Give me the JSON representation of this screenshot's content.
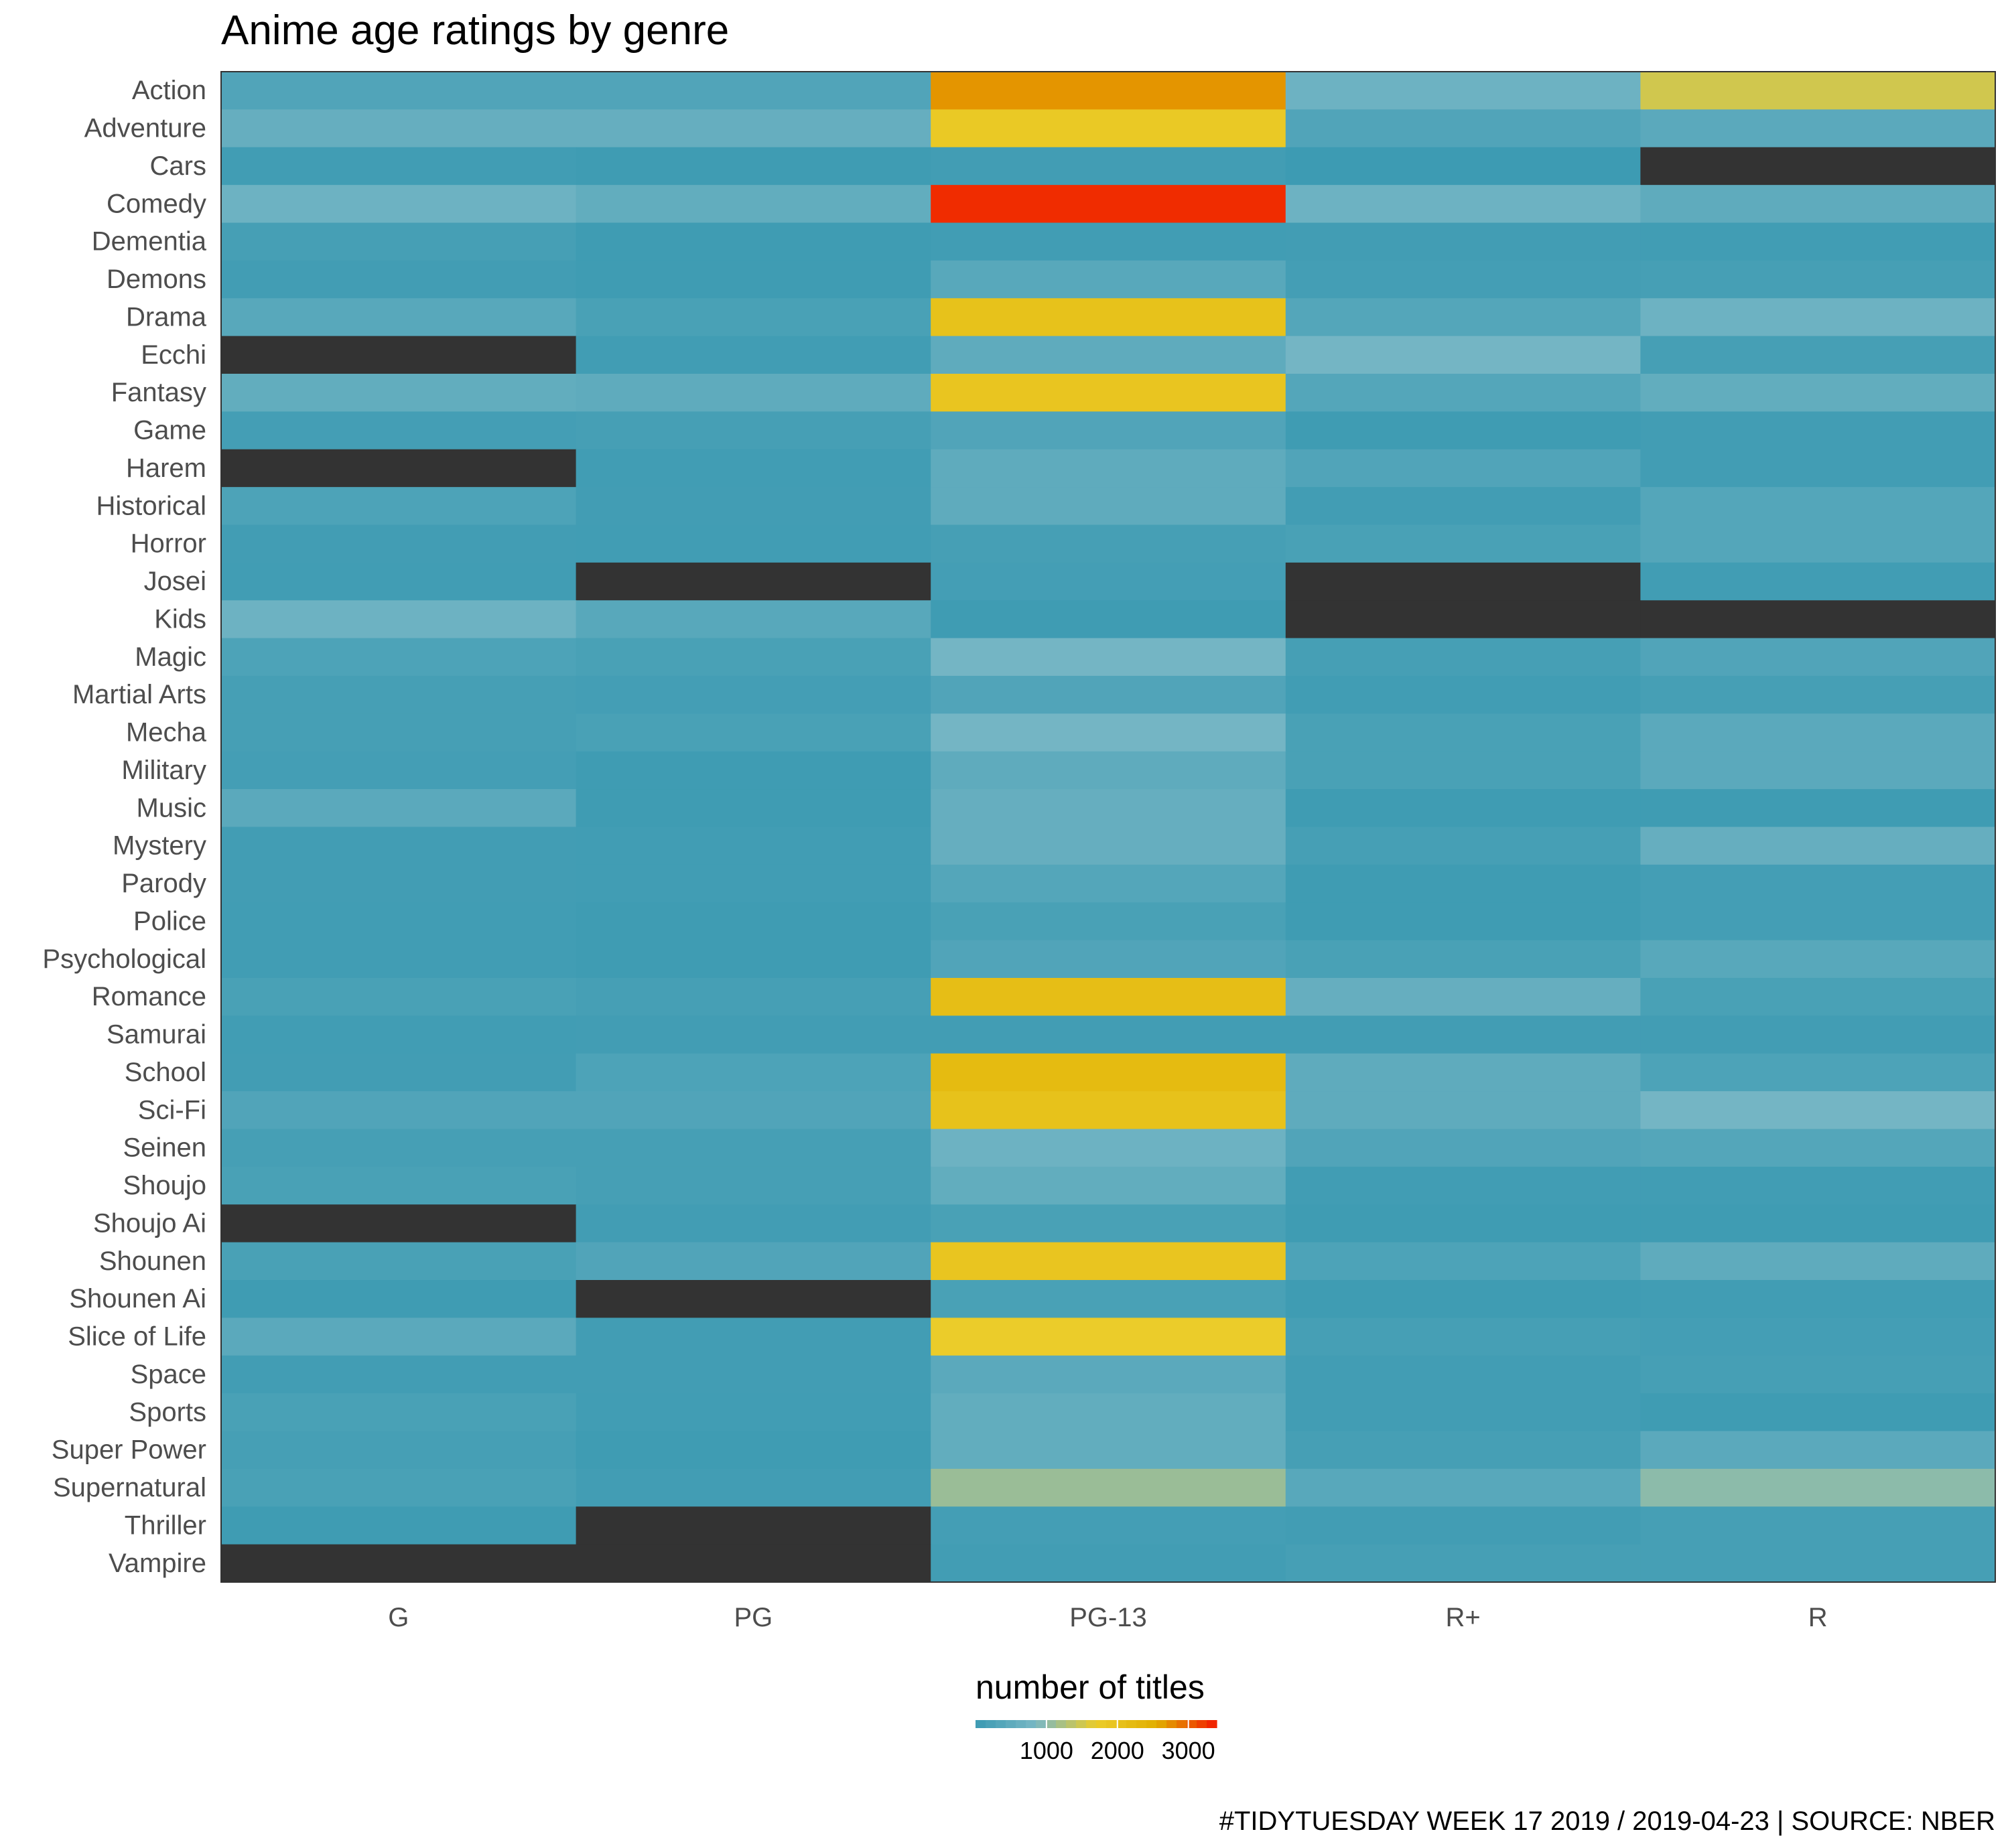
{
  "chart_data": {
    "type": "heatmap",
    "title": "Anime age ratings by genre",
    "caption": "#TIDYTUESDAY WEEK 17 2019 / 2019-04-23 | SOURCE: NBER",
    "x_categories": [
      "G",
      "PG",
      "PG-13",
      "R+",
      "R"
    ],
    "y_categories": [
      "Action",
      "Adventure",
      "Cars",
      "Comedy",
      "Dementia",
      "Demons",
      "Drama",
      "Ecchi",
      "Fantasy",
      "Game",
      "Harem",
      "Historical",
      "Horror",
      "Josei",
      "Kids",
      "Magic",
      "Martial Arts",
      "Mecha",
      "Military",
      "Music",
      "Mystery",
      "Parody",
      "Police",
      "Psychological",
      "Romance",
      "Samurai",
      "School",
      "Sci-Fi",
      "Seinen",
      "Shoujo",
      "Shoujo Ai",
      "Shounen",
      "Shounen Ai",
      "Slice of Life",
      "Space",
      "Sports",
      "Super Power",
      "Supernatural",
      "Thriller",
      "Vampire"
    ],
    "values": [
      [
        300,
        300,
        2700,
        700,
        1500
      ],
      [
        600,
        600,
        1800,
        300,
        450
      ],
      [
        80,
        50,
        100,
        30,
        null
      ],
      [
        700,
        550,
        3300,
        700,
        500
      ],
      [
        150,
        50,
        80,
        100,
        80
      ],
      [
        100,
        60,
        400,
        120,
        150
      ],
      [
        400,
        200,
        2000,
        350,
        700
      ],
      [
        null,
        80,
        500,
        800,
        150
      ],
      [
        550,
        500,
        1900,
        350,
        550
      ],
      [
        120,
        150,
        300,
        60,
        100
      ],
      [
        null,
        80,
        500,
        300,
        100
      ],
      [
        250,
        100,
        500,
        100,
        350
      ],
      [
        100,
        80,
        150,
        200,
        350
      ],
      [
        80,
        null,
        120,
        null,
        80
      ],
      [
        700,
        400,
        50,
        null,
        null
      ],
      [
        250,
        200,
        800,
        150,
        300
      ],
      [
        150,
        120,
        300,
        80,
        150
      ],
      [
        150,
        200,
        800,
        200,
        450
      ],
      [
        120,
        50,
        500,
        200,
        450
      ],
      [
        450,
        60,
        600,
        60,
        60
      ],
      [
        100,
        80,
        600,
        150,
        600
      ],
      [
        100,
        80,
        350,
        60,
        120
      ],
      [
        80,
        60,
        200,
        60,
        120
      ],
      [
        80,
        60,
        300,
        200,
        400
      ],
      [
        200,
        150,
        2100,
        600,
        200
      ],
      [
        80,
        100,
        100,
        100,
        100
      ],
      [
        100,
        250,
        2200,
        500,
        250
      ],
      [
        300,
        300,
        2000,
        500,
        800
      ],
      [
        150,
        150,
        700,
        300,
        350
      ],
      [
        200,
        150,
        550,
        80,
        80
      ],
      [
        null,
        100,
        200,
        60,
        60
      ],
      [
        200,
        300,
        1900,
        250,
        500
      ],
      [
        60,
        null,
        200,
        60,
        80
      ],
      [
        450,
        100,
        1700,
        150,
        120
      ],
      [
        100,
        100,
        450,
        100,
        150
      ],
      [
        200,
        80,
        550,
        100,
        60
      ],
      [
        150,
        50,
        550,
        150,
        450
      ],
      [
        200,
        100,
        1100,
        400,
        1000
      ],
      [
        50,
        null,
        120,
        100,
        150
      ],
      [
        null,
        null,
        100,
        150,
        150
      ]
    ],
    "legend": {
      "title": "number of titles",
      "ticks": [
        1000,
        2000,
        3000
      ],
      "range": [
        0,
        3400
      ],
      "position": "bottom"
    },
    "colors": {
      "scale": [
        "#3b9ab2",
        "#78b7c5",
        "#ebcc2a",
        "#e1af00",
        "#f21a00"
      ],
      "missing": "#333333",
      "panel_border": "#333333",
      "axis_text": "#4d4d4d",
      "title_text": "#000000"
    }
  }
}
